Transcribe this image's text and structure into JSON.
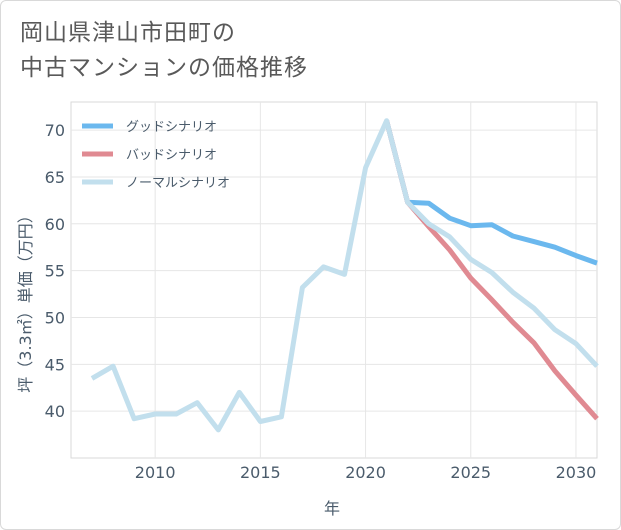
{
  "title_line1": "岡山県津山市田町の",
  "title_line2": "中古マンションの価格推移",
  "chart_data": {
    "type": "line",
    "xlabel": "年",
    "ylabel": "坪（3.3㎡）単価（万円）",
    "xlim": [
      2006,
      2031
    ],
    "ylim": [
      35,
      73
    ],
    "xticks": [
      2010,
      2015,
      2020,
      2025,
      2030
    ],
    "yticks": [
      40,
      45,
      50,
      55,
      60,
      65,
      70
    ],
    "grid": true,
    "legend_position": "top-left",
    "series": [
      {
        "name": "グッドシナリオ",
        "color": "#6bb8ee",
        "x": [
          2021,
          2022,
          2023,
          2024,
          2025,
          2026,
          2027,
          2028,
          2029,
          2030,
          2031
        ],
        "values": [
          71.0,
          62.3,
          62.2,
          60.6,
          59.8,
          59.9,
          58.7,
          58.1,
          57.5,
          56.6,
          55.8
        ]
      },
      {
        "name": "バッドシナリオ",
        "color": "#e08a92",
        "x": [
          2021,
          2022,
          2023,
          2024,
          2025,
          2026,
          2027,
          2028,
          2029,
          2030,
          2031
        ],
        "values": [
          71.0,
          62.3,
          59.7,
          57.2,
          54.2,
          51.9,
          49.5,
          47.3,
          44.3,
          41.7,
          39.2
        ]
      },
      {
        "name": "ノーマルシナリオ",
        "color": "#c2dfed",
        "x": [
          2007,
          2008,
          2009,
          2010,
          2011,
          2012,
          2013,
          2014,
          2015,
          2016,
          2017,
          2018,
          2019,
          2020,
          2021,
          2022,
          2023,
          2024,
          2025,
          2026,
          2027,
          2028,
          2029,
          2030,
          2031
        ],
        "values": [
          43.5,
          44.8,
          39.2,
          39.7,
          39.7,
          40.9,
          38.0,
          42.0,
          38.9,
          39.4,
          53.2,
          55.4,
          54.6,
          66.0,
          71.0,
          62.3,
          60.0,
          58.6,
          56.2,
          54.8,
          52.7,
          51.0,
          48.7,
          47.2,
          44.8
        ]
      }
    ]
  }
}
